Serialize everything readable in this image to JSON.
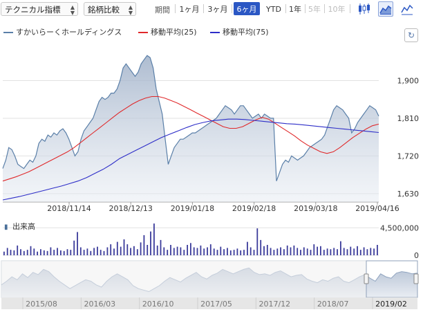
{
  "toolbar": {
    "chart_type_select": "テクニカル指標",
    "compare_select": "銘柄比較",
    "period_label": "期間",
    "periods": [
      {
        "label": "1ヶ月",
        "state": "normal"
      },
      {
        "label": "3ヶ月",
        "state": "normal"
      },
      {
        "label": "6ヶ月",
        "state": "active"
      },
      {
        "label": "YTD",
        "state": "normal"
      },
      {
        "label": "1年",
        "state": "normal"
      },
      {
        "label": "5年",
        "state": "disabled"
      },
      {
        "label": "10年",
        "state": "disabled"
      }
    ],
    "tools": [
      {
        "icon": "candlestick-icon",
        "active": false
      },
      {
        "icon": "area-chart-icon",
        "active": true
      },
      {
        "icon": "line-chart-icon",
        "active": false
      }
    ],
    "accent_color": "#2b57c4"
  },
  "legend": {
    "items": [
      {
        "label": "すかいらーくホールディングス",
        "color": "#5a7fa8"
      },
      {
        "label": "移動平均(25)",
        "color": "#e0282a"
      },
      {
        "label": "移動平均(75)",
        "color": "#2d2dc8"
      }
    ],
    "refresh_icon": "refresh-icon"
  },
  "chart_data": [
    {
      "type": "area",
      "series": [
        {
          "name": "すかいらーくホールディングス",
          "color": "#5a7fa8",
          "values": [
            1690,
            1710,
            1740,
            1735,
            1720,
            1700,
            1695,
            1690,
            1700,
            1710,
            1705,
            1720,
            1750,
            1760,
            1755,
            1770,
            1765,
            1775,
            1770,
            1780,
            1785,
            1775,
            1760,
            1740,
            1720,
            1730,
            1760,
            1780,
            1790,
            1800,
            1810,
            1830,
            1850,
            1860,
            1855,
            1860,
            1870,
            1870,
            1880,
            1900,
            1930,
            1940,
            1930,
            1920,
            1910,
            1920,
            1940,
            1950,
            1960,
            1955,
            1930,
            1880,
            1850,
            1820,
            1760,
            1700,
            1720,
            1740,
            1750,
            1760,
            1760,
            1765,
            1770,
            1775,
            1775,
            1780,
            1785,
            1790,
            1795,
            1800,
            1805,
            1810,
            1820,
            1830,
            1840,
            1835,
            1830,
            1820,
            1830,
            1840,
            1840,
            1830,
            1820,
            1810,
            1815,
            1820,
            1810,
            1820,
            1815,
            1810,
            1810,
            1660,
            1680,
            1700,
            1710,
            1705,
            1720,
            1715,
            1710,
            1715,
            1720,
            1730,
            1740,
            1745,
            1750,
            1755,
            1760,
            1770,
            1790,
            1810,
            1830,
            1840,
            1835,
            1830,
            1820,
            1810,
            1775,
            1785,
            1800,
            1810,
            1820,
            1830,
            1840,
            1835,
            1830,
            1815
          ]
        },
        {
          "name": "移動平均(25)",
          "color": "#e0282a",
          "values": [
            1660,
            1665,
            1670,
            1676,
            1682,
            1690,
            1698,
            1706,
            1714,
            1722,
            1730,
            1740,
            1752,
            1764,
            1776,
            1788,
            1800,
            1812,
            1824,
            1834,
            1844,
            1852,
            1858,
            1862,
            1862,
            1858,
            1852,
            1846,
            1838,
            1830,
            1822,
            1814,
            1806,
            1798,
            1790,
            1786,
            1786,
            1790,
            1798,
            1806,
            1812,
            1808,
            1798,
            1788,
            1778,
            1768,
            1756,
            1746,
            1738,
            1730,
            1726,
            1730,
            1740,
            1752,
            1764,
            1774,
            1784,
            1792,
            1796
          ]
        },
        {
          "name": "移動平均(75)",
          "color": "#2d2dc8",
          "values": [
            1615,
            1619,
            1623,
            1628,
            1633,
            1638,
            1643,
            1648,
            1654,
            1660,
            1668,
            1678,
            1688,
            1700,
            1714,
            1724,
            1734,
            1744,
            1754,
            1764,
            1772,
            1780,
            1788,
            1795,
            1800,
            1804,
            1806,
            1808,
            1808,
            1807,
            1805,
            1803,
            1801,
            1799,
            1797,
            1796,
            1794,
            1792,
            1790,
            1788,
            1786,
            1784,
            1782,
            1780,
            1778,
            1776
          ]
        }
      ],
      "y_ticks": [
        "1,900",
        "1,810",
        "1,720",
        "1,630"
      ],
      "x_ticks": [
        "2018/11/14",
        "2018/12/13",
        "2019/01/18",
        "2019/02/18",
        "2019/03/18",
        "2019/04/16"
      ],
      "ylim": [
        1610,
        1990
      ],
      "grid": true
    },
    {
      "type": "bar",
      "title": "出来高",
      "y_ticks": [
        "4,500,000",
        "0"
      ],
      "ylim": [
        0,
        6000000
      ],
      "color": "#3a3a9a",
      "values": [
        600000,
        1200000,
        900000,
        800000,
        1600000,
        1000000,
        700000,
        900000,
        1500000,
        1100000,
        600000,
        1000000,
        800000,
        700000,
        1300000,
        900000,
        1200000,
        800000,
        700000,
        1000000,
        900000,
        2400000,
        3800000,
        1300000,
        900000,
        1100000,
        700000,
        1200000,
        1400000,
        900000,
        700000,
        1300000,
        1800000,
        1100000,
        2200000,
        1400000,
        2600000,
        1800000,
        1200000,
        1500000,
        1000000,
        2100000,
        3300000,
        1700000,
        3900000,
        5200000,
        1600000,
        2500000,
        1300000,
        900000,
        1700000,
        1200000,
        1400000,
        1300000,
        900000,
        1700000,
        2000000,
        1300000,
        1200000,
        1600000,
        1100000,
        1300000,
        1800000,
        1100000,
        900000,
        1400000,
        1000000,
        1200000,
        800000,
        900000,
        1100000,
        800000,
        900000,
        2200000,
        1300000,
        900000,
        4400000,
        2500000,
        1500000,
        1700000,
        1200000,
        900000,
        1100000,
        1300000,
        1000000,
        1600000,
        1300000,
        1600000,
        1200000,
        900000,
        1300000,
        1100000,
        900000,
        1800000,
        1400000,
        1500000,
        900000,
        1100000,
        1000000,
        1200000,
        1000000,
        2300000,
        1200000,
        1000000,
        1400000,
        1100000,
        1500000,
        900000,
        1300000,
        1000000,
        1200000,
        1100000,
        1700000
      ]
    },
    {
      "type": "area",
      "title": "navigator",
      "x_ticks": [
        "2015/08",
        "2016/03",
        "2016/10",
        "2017/05",
        "2017/12",
        "2018/07",
        "2019/02"
      ],
      "values": [
        1650,
        1700,
        1760,
        1720,
        1800,
        1750,
        1820,
        1790,
        1860,
        1830,
        1760,
        1700,
        1650,
        1600,
        1640,
        1680,
        1720,
        1700,
        1650,
        1620,
        1700,
        1760,
        1800,
        1760,
        1720,
        1640,
        1600,
        1580,
        1560,
        1600,
        1640,
        1700,
        1750,
        1720,
        1690,
        1740,
        1780,
        1820,
        1760,
        1730,
        1780,
        1810,
        1860,
        1830,
        1800,
        1830,
        1860,
        1880,
        1820,
        1790,
        1800,
        1780,
        1820,
        1840,
        1800,
        1760,
        1780,
        1790,
        1730,
        1700,
        1680,
        1720,
        1700,
        1740,
        1760,
        1700,
        1680,
        1720,
        1760,
        1790,
        1740,
        1700,
        1800,
        1760,
        1740,
        1810,
        1830,
        1820,
        1800,
        1810
      ]
    }
  ]
}
